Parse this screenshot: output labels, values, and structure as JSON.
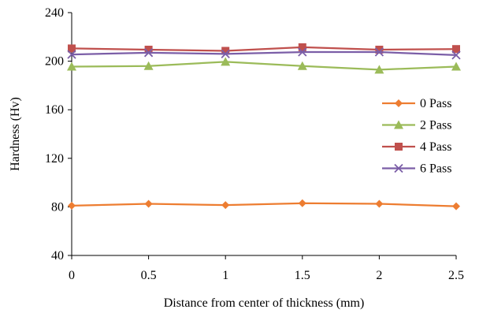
{
  "chart_data": {
    "type": "line",
    "title": "",
    "xlabel": "Distance from center of thickness (mm)",
    "ylabel": "Hardness (Hv)",
    "x": [
      0,
      0.5,
      1,
      1.5,
      2,
      2.5
    ],
    "x_tick_labels": [
      "0",
      "0.5",
      "1",
      "1.5",
      "2",
      "2.5"
    ],
    "xlim": [
      0,
      2.5
    ],
    "ylim": [
      40,
      240
    ],
    "y_ticks": [
      40,
      80,
      120,
      160,
      200,
      240
    ],
    "y_tick_labels": [
      "40",
      "80",
      "120",
      "160",
      "200",
      "240"
    ],
    "grid": false,
    "legend_position": "right",
    "series": [
      {
        "name": "0 Pass",
        "color": "#ed7d31",
        "marker": "diamond",
        "values": [
          81,
          82.5,
          81.5,
          83,
          82.5,
          80.5
        ]
      },
      {
        "name": "2 Pass",
        "color": "#9bbb59",
        "marker": "triangle",
        "values": [
          195.5,
          196,
          199.5,
          196,
          193,
          195.5
        ]
      },
      {
        "name": "4 Pass",
        "color": "#c0504d",
        "marker": "square",
        "values": [
          210.5,
          209.5,
          208.5,
          211.5,
          209.5,
          210
        ]
      },
      {
        "name": "6 Pass",
        "color": "#7b5ea7",
        "marker": "x",
        "values": [
          205.5,
          207,
          206,
          207.5,
          207.5,
          205
        ]
      }
    ]
  }
}
